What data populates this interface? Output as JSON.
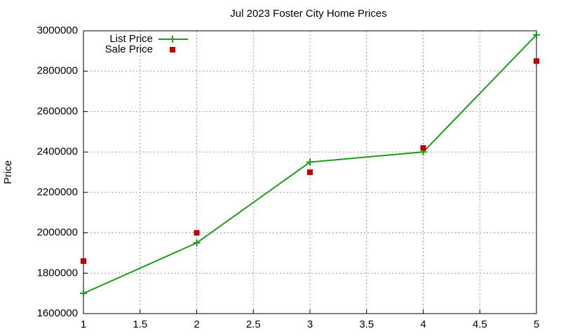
{
  "chart_data": {
    "type": "line",
    "title": "Jul 2023 Foster City Home Prices",
    "y_label": "Price",
    "x": [
      1,
      2,
      3,
      4,
      5
    ],
    "series": [
      {
        "name": "List Price",
        "color": "#1a9e1a",
        "mode": "linespoints",
        "marker": "plus",
        "values": [
          1700000,
          1950000,
          2350000,
          2400000,
          2980000
        ]
      },
      {
        "name": "Sale Price",
        "color": "#c00000",
        "mode": "points",
        "marker": "square",
        "values": [
          1860000,
          2000000,
          2300000,
          2420000,
          2850000
        ]
      }
    ],
    "xlim": [
      1,
      5
    ],
    "xticks": [
      1,
      1.5,
      2,
      2.5,
      3,
      3.5,
      4,
      4.5,
      5
    ],
    "ylim": [
      1600000,
      3000000
    ],
    "yticks": [
      1600000,
      1800000,
      2000000,
      2200000,
      2400000,
      2600000,
      2800000,
      3000000
    ],
    "grid": true,
    "legend": "top-left"
  }
}
